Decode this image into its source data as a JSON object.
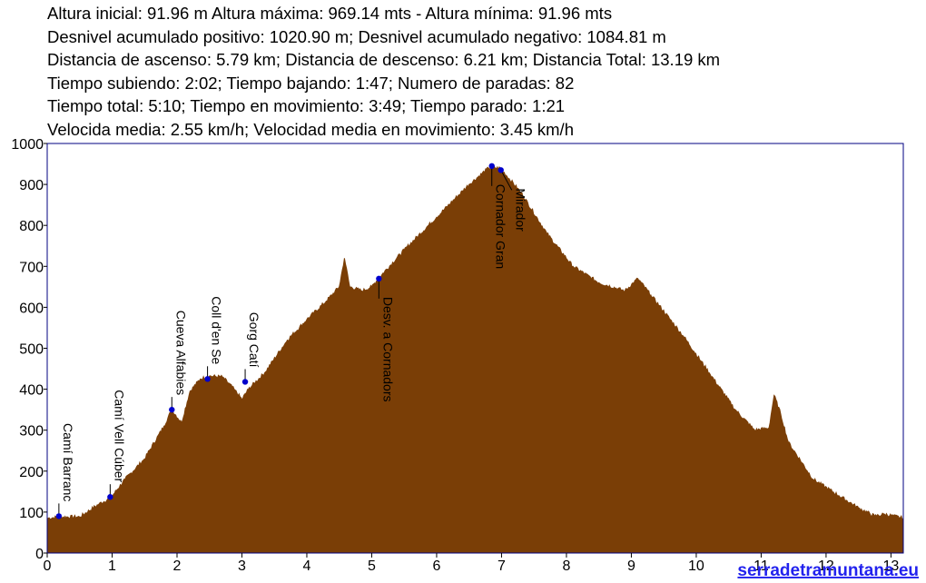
{
  "stats_lines": [
    "Altura inicial: 91.96 m Altura máxima: 969.14 mts - Altura mínima: 91.96 mts",
    "Desnivel acumulado positivo: 1020.90 m; Desnivel acumulado negativo: 1084.81 m",
    "Distancia de ascenso: 5.79 km; Distancia de descenso: 6.21 km; Distancia Total: 13.19 km",
    "Tiempo subiendo: 2:02; Tiempo bajando: 1:47; Numero de paradas: 82",
    "Tiempo total: 5:10; Tiempo en movimiento: 3:49; Tiempo parado: 1:21",
    "Velocida media: 2.55 km/h; Velocidad media en movimiento: 3.45 km/h"
  ],
  "brand": {
    "text": "serradetramuntana.eu",
    "color": "#2222ee"
  },
  "chart_data": {
    "type": "area",
    "xlim": [
      0,
      13.19
    ],
    "ylim": [
      0,
      1000
    ],
    "x_ticks": [
      0,
      1,
      2,
      3,
      4,
      5,
      6,
      7,
      8,
      9,
      10,
      11,
      12,
      13
    ],
    "y_ticks": [
      0,
      100,
      200,
      300,
      400,
      500,
      600,
      700,
      800,
      900,
      1000
    ],
    "fill_color": "#7a3e06",
    "frame_color": "#000080",
    "marker_color": "#0000cc",
    "profile": [
      [
        0,
        85
      ],
      [
        0.2,
        88
      ],
      [
        0.5,
        88
      ],
      [
        0.8,
        120
      ],
      [
        0.98,
        135
      ],
      [
        1.2,
        180
      ],
      [
        1.5,
        230
      ],
      [
        1.8,
        310
      ],
      [
        1.92,
        350
      ],
      [
        2.07,
        318
      ],
      [
        2.2,
        395
      ],
      [
        2.36,
        425
      ],
      [
        2.5,
        432
      ],
      [
        2.7,
        430
      ],
      [
        2.88,
        400
      ],
      [
        3.0,
        375
      ],
      [
        3.1,
        400
      ],
      [
        3.35,
        440
      ],
      [
        3.7,
        520
      ],
      [
        4.0,
        570
      ],
      [
        4.3,
        615
      ],
      [
        4.5,
        650
      ],
      [
        4.58,
        720
      ],
      [
        4.66,
        650
      ],
      [
        4.85,
        640
      ],
      [
        5.0,
        650
      ],
      [
        5.1,
        670
      ],
      [
        5.5,
        740
      ],
      [
        6.0,
        820
      ],
      [
        6.5,
        900
      ],
      [
        6.8,
        940
      ],
      [
        6.98,
        940
      ],
      [
        7.3,
        880
      ],
      [
        7.7,
        780
      ],
      [
        8.1,
        700
      ],
      [
        8.5,
        660
      ],
      [
        8.9,
        640
      ],
      [
        9.1,
        670
      ],
      [
        9.3,
        630
      ],
      [
        9.8,
        530
      ],
      [
        10.2,
        440
      ],
      [
        10.6,
        350
      ],
      [
        10.9,
        300
      ],
      [
        11.12,
        305
      ],
      [
        11.2,
        385
      ],
      [
        11.3,
        340
      ],
      [
        11.42,
        270
      ],
      [
        11.8,
        180
      ],
      [
        12.2,
        140
      ],
      [
        12.5,
        110
      ],
      [
        12.75,
        90
      ],
      [
        12.9,
        95
      ],
      [
        13.19,
        85
      ]
    ],
    "waypoints": [
      {
        "name": "Camí Barranc",
        "x": 0.18,
        "y": 90
      },
      {
        "name": "Camí Vell Cúber",
        "x": 0.97,
        "y": 137
      },
      {
        "name": "Cueva Alfabies",
        "x": 1.92,
        "y": 350
      },
      {
        "name": "Coll d'en Se",
        "x": 2.47,
        "y": 425
      },
      {
        "name": "Gorg Catí",
        "x": 3.05,
        "y": 418
      },
      {
        "name": "Desv. a Cornadors",
        "x": 5.11,
        "y": 670
      },
      {
        "name": "Cornador Gran",
        "x": 6.85,
        "y": 945
      },
      {
        "name": "Mirador",
        "x": 6.99,
        "y": 935
      }
    ]
  }
}
